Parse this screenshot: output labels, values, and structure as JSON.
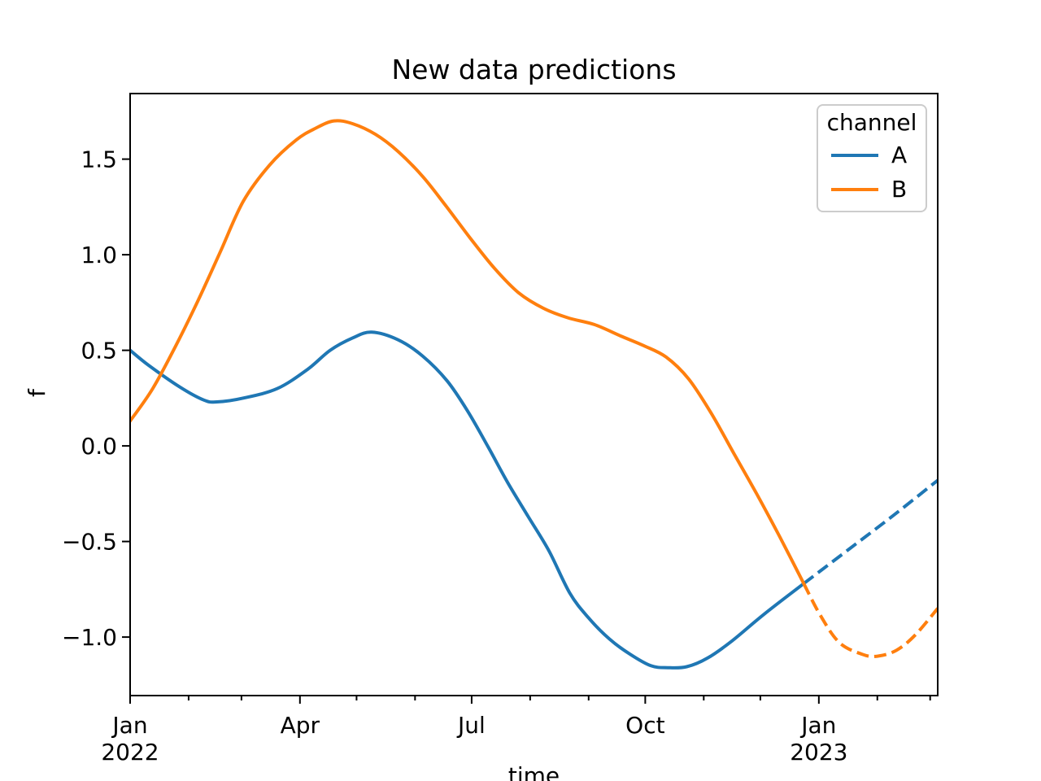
{
  "figure": {
    "title": "New data predictions",
    "x_axis_label": "time",
    "y_axis_label": "f"
  },
  "legend": {
    "title": "channel",
    "entries": [
      {
        "label": "A",
        "color": "#1f77b4"
      },
      {
        "label": "B",
        "color": "#ff7f0e"
      }
    ]
  },
  "chart_data": {
    "type": "line",
    "title": "New data predictions",
    "xlabel": "time",
    "ylabel": "f",
    "x_unit": "days since 2022-01-01",
    "xlim": [
      0,
      428
    ],
    "ylim": [
      -1.306,
      1.843
    ],
    "grid": false,
    "legend_position": "upper right",
    "x_major_ticks": [
      {
        "t": 0,
        "line1": "Jan",
        "line2": "2022"
      },
      {
        "t": 90,
        "line1": "Apr",
        "line2": ""
      },
      {
        "t": 181,
        "line1": "Jul",
        "line2": ""
      },
      {
        "t": 273,
        "line1": "Oct",
        "line2": ""
      },
      {
        "t": 365,
        "line1": "Jan",
        "line2": "2023"
      }
    ],
    "x_minor_ticks": [
      31,
      59,
      120,
      151,
      212,
      243,
      304,
      334,
      396,
      424
    ],
    "y_ticks": [
      {
        "v": -1.0,
        "label": "−1.0"
      },
      {
        "v": -0.5,
        "label": "−0.5"
      },
      {
        "v": 0.0,
        "label": "0.0"
      },
      {
        "v": 0.5,
        "label": "0.5"
      },
      {
        "v": 1.0,
        "label": "1.0"
      },
      {
        "v": 1.5,
        "label": "1.5"
      }
    ],
    "series": [
      {
        "name": "A-observed",
        "channel": "A",
        "segment": "observed",
        "style": "solid",
        "color": "#1f77b4",
        "points": [
          [
            0,
            0.5
          ],
          [
            10,
            0.42
          ],
          [
            26,
            0.31
          ],
          [
            39,
            0.24
          ],
          [
            46,
            0.23
          ],
          [
            60,
            0.25
          ],
          [
            78,
            0.3
          ],
          [
            94,
            0.4
          ],
          [
            106,
            0.5
          ],
          [
            118,
            0.565
          ],
          [
            128,
            0.595
          ],
          [
            142,
            0.555
          ],
          [
            155,
            0.47
          ],
          [
            168,
            0.34
          ],
          [
            179,
            0.18
          ],
          [
            190,
            -0.01
          ],
          [
            200,
            -0.19
          ],
          [
            211,
            -0.37
          ],
          [
            222,
            -0.55
          ],
          [
            233,
            -0.77
          ],
          [
            243,
            -0.9
          ],
          [
            254,
            -1.01
          ],
          [
            265,
            -1.09
          ],
          [
            276,
            -1.15
          ],
          [
            285,
            -1.16
          ],
          [
            295,
            -1.155
          ],
          [
            306,
            -1.11
          ],
          [
            319,
            -1.02
          ],
          [
            336,
            -0.88
          ],
          [
            357,
            -0.72
          ]
        ]
      },
      {
        "name": "A-forecast",
        "channel": "A",
        "segment": "predicted",
        "style": "dashed",
        "color": "#1f77b4",
        "points": [
          [
            357,
            -0.72
          ],
          [
            381,
            -0.54
          ],
          [
            405,
            -0.36
          ],
          [
            428,
            -0.18
          ]
        ]
      },
      {
        "name": "B-observed",
        "channel": "B",
        "segment": "observed",
        "style": "solid",
        "color": "#ff7f0e",
        "points": [
          [
            0,
            0.13
          ],
          [
            12,
            0.3
          ],
          [
            24,
            0.52
          ],
          [
            36,
            0.76
          ],
          [
            48,
            1.02
          ],
          [
            60,
            1.28
          ],
          [
            74,
            1.47
          ],
          [
            88,
            1.6
          ],
          [
            98,
            1.66
          ],
          [
            108,
            1.7
          ],
          [
            118,
            1.685
          ],
          [
            130,
            1.63
          ],
          [
            142,
            1.54
          ],
          [
            155,
            1.41
          ],
          [
            167,
            1.26
          ],
          [
            180,
            1.09
          ],
          [
            193,
            0.93
          ],
          [
            206,
            0.8
          ],
          [
            219,
            0.72
          ],
          [
            232,
            0.67
          ],
          [
            246,
            0.635
          ],
          [
            260,
            0.575
          ],
          [
            272,
            0.525
          ],
          [
            284,
            0.465
          ],
          [
            296,
            0.35
          ],
          [
            308,
            0.17
          ],
          [
            320,
            -0.04
          ],
          [
            332,
            -0.25
          ],
          [
            344,
            -0.47
          ],
          [
            357,
            -0.72
          ]
        ]
      },
      {
        "name": "B-forecast",
        "channel": "B",
        "segment": "predicted",
        "style": "dashed",
        "color": "#ff7f0e",
        "points": [
          [
            357,
            -0.72
          ],
          [
            366,
            -0.89
          ],
          [
            376,
            -1.03
          ],
          [
            388,
            -1.09
          ],
          [
            396,
            -1.1
          ],
          [
            406,
            -1.07
          ],
          [
            416,
            -0.99
          ],
          [
            428,
            -0.85
          ]
        ]
      }
    ]
  }
}
